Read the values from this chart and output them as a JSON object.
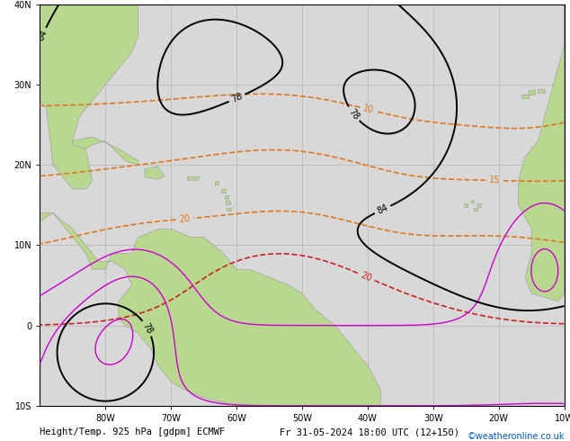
{
  "title_left": "Height/Temp. 925 hPa [gdpm] ECMWF",
  "title_right": "Fr 31-05-2024 18:00 UTC (12+150)",
  "credit": "©weatheronline.co.uk",
  "bg_ocean": "#d8d8d8",
  "bg_land": "#b8d890",
  "grid_color": "#bbbbbb",
  "figsize": [
    6.34,
    4.9
  ],
  "dpi": 100,
  "xlim": [
    -90,
    -10
  ],
  "ylim": [
    -10,
    40
  ],
  "xticks": [
    -80,
    -70,
    -60,
    -50,
    -40,
    -30,
    -20,
    -10
  ],
  "xtick_labels": [
    "80W",
    "70W",
    "60W",
    "50W",
    "40W",
    "30W",
    "20W",
    "10W"
  ],
  "yticks": [
    -10,
    0,
    10,
    20,
    30,
    40
  ],
  "ytick_labels": [
    "10S",
    "0",
    "10N",
    "20N",
    "30N",
    "40N"
  ],
  "height_color": "#000000",
  "orange_color": "#e07820",
  "red_color": "#cc2222",
  "magenta_color": "#cc00cc",
  "lw_height": 1.4,
  "lw_temp": 1.2,
  "fs_label": 7,
  "fs_title": 7.5,
  "fs_credit": 7
}
